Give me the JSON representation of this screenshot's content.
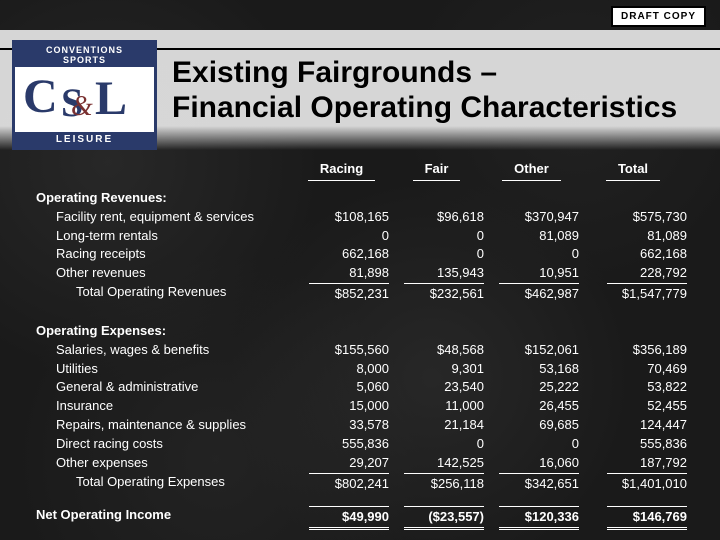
{
  "draft_label": "DRAFT COPY",
  "logo": {
    "top": "CONVENTIONS",
    "top2": "SPORTS",
    "bottom": "LEISURE",
    "c": "C",
    "s": "S",
    "l": "L",
    "amp": "&"
  },
  "title_line1": "Existing Fairgrounds –",
  "title_line2": "Financial Operating Characteristics",
  "columns": {
    "c1": "Racing",
    "c2": "Fair",
    "c3": "Other",
    "c4": "Total"
  },
  "rev": {
    "header": "Operating Revenues:",
    "rows": [
      {
        "label": "Facility rent, equipment & services",
        "c1": "$108,165",
        "c2": "$96,618",
        "c3": "$370,947",
        "c4": "$575,730"
      },
      {
        "label": "Long-term rentals",
        "c1": "0",
        "c2": "0",
        "c3": "81,089",
        "c4": "81,089"
      },
      {
        "label": "Racing receipts",
        "c1": "662,168",
        "c2": "0",
        "c3": "0",
        "c4": "662,168"
      },
      {
        "label": "Other revenues",
        "c1": "81,898",
        "c2": "135,943",
        "c3": "10,951",
        "c4": "228,792"
      }
    ],
    "total": {
      "label": "Total Operating Revenues",
      "c1": "$852,231",
      "c2": "$232,561",
      "c3": "$462,987",
      "c4": "$1,547,779"
    }
  },
  "exp": {
    "header": "Operating Expenses:",
    "rows": [
      {
        "label": "Salaries, wages & benefits",
        "c1": "$155,560",
        "c2": "$48,568",
        "c3": "$152,061",
        "c4": "$356,189"
      },
      {
        "label": "Utilities",
        "c1": "8,000",
        "c2": "9,301",
        "c3": "53,168",
        "c4": "70,469"
      },
      {
        "label": "General & administrative",
        "c1": "5,060",
        "c2": "23,540",
        "c3": "25,222",
        "c4": "53,822"
      },
      {
        "label": "Insurance",
        "c1": "15,000",
        "c2": "11,000",
        "c3": "26,455",
        "c4": "52,455"
      },
      {
        "label": "Repairs, maintenance & supplies",
        "c1": "33,578",
        "c2": "21,184",
        "c3": "69,685",
        "c4": "124,447"
      },
      {
        "label": "Direct racing costs",
        "c1": "555,836",
        "c2": "0",
        "c3": "0",
        "c4": "555,836"
      },
      {
        "label": "Other expenses",
        "c1": "29,207",
        "c2": "142,525",
        "c3": "16,060",
        "c4": "187,792"
      }
    ],
    "total": {
      "label": "Total Operating Expenses",
      "c1": "$802,241",
      "c2": "$256,118",
      "c3": "$342,651",
      "c4": "$1,401,010"
    }
  },
  "net": {
    "label": "Net Operating Income",
    "c1": "$49,990",
    "c2": "($23,557)",
    "c3": "$120,336",
    "c4": "$146,769"
  }
}
